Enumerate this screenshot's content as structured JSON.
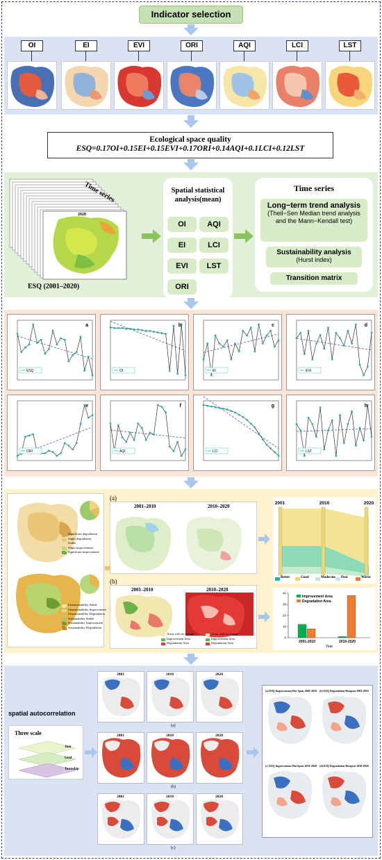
{
  "header": {
    "title": "Indicator selection"
  },
  "indicators": [
    "OI",
    "EI",
    "EVI",
    "ORI",
    "AQI",
    "LCI",
    "LST"
  ],
  "formula": {
    "title": "Ecological space quality",
    "equation": "ESQ=0.17OI+0.15EI+0.15EVI+0.17ORI+0.14AQI+0.1LCI+0.12LST"
  },
  "time_series_panel": {
    "stack_label": "Time series",
    "map_year": "2020",
    "caption": "ESQ (2001–2020)"
  },
  "spatial_stats": {
    "title": "Spatial statistical analysis(mean)",
    "items": [
      "OI",
      "AQI",
      "EI",
      "LCI",
      "EVI",
      "LST",
      "ORI"
    ]
  },
  "time_series_box": {
    "title": "Time series",
    "trend_title": "Long−term trend analysis",
    "trend_sub": "(Theil−Sen Median trend analysis and the Mann−Kendall test)",
    "sustain_title": "Sustainability analysis",
    "sustain_sub": "(Hurst index)",
    "transition": "Transition matrix"
  },
  "chart_data": [
    {
      "type": "line",
      "panel": "a",
      "legend": "ESQ",
      "x": [
        2001,
        2002,
        2003,
        2004,
        2005,
        2006,
        2007,
        2008,
        2009,
        2010,
        2011,
        2012,
        2013,
        2014,
        2015,
        2016,
        2017,
        2018,
        2019,
        2020
      ],
      "values": [
        60,
        48,
        51,
        53,
        66,
        54,
        56,
        47,
        50,
        62,
        53,
        57,
        56,
        42,
        46,
        48,
        58,
        36,
        45,
        33
      ]
    },
    {
      "type": "line",
      "panel": "b",
      "legend": "OI",
      "x": [
        2001,
        2002,
        2003,
        2004,
        2005,
        2006,
        2007,
        2008,
        2009,
        2010,
        2011,
        2012,
        2013,
        2014,
        2015,
        2016,
        2017,
        2018,
        2019,
        2020
      ],
      "values": [
        80,
        79,
        79,
        79,
        78,
        78,
        77,
        77,
        76,
        75,
        75,
        74,
        73,
        72,
        71,
        20,
        82,
        16,
        84,
        14
      ]
    },
    {
      "type": "line",
      "panel": "c",
      "legend": "EI",
      "x": [
        2001,
        2002,
        2003,
        2004,
        2005,
        2006,
        2007,
        2008,
        2009,
        2010,
        2011,
        2012,
        2013,
        2014,
        2015,
        2016,
        2017,
        2018,
        2019,
        2020
      ],
      "values": [
        40,
        50,
        30,
        55,
        50,
        48,
        52,
        40,
        50,
        45,
        58,
        55,
        60,
        45,
        62,
        50,
        55,
        58,
        48,
        52
      ]
    },
    {
      "type": "line",
      "panel": "d",
      "legend": "EVI",
      "x": [
        2001,
        2002,
        2003,
        2004,
        2005,
        2006,
        2007,
        2008,
        2009,
        2010,
        2011,
        2012,
        2013,
        2014,
        2015,
        2016,
        2017,
        2018,
        2019,
        2020
      ],
      "values": [
        55,
        60,
        40,
        62,
        35,
        50,
        58,
        45,
        65,
        35,
        60,
        55,
        48,
        62,
        50,
        68,
        30,
        20,
        28,
        60
      ]
    },
    {
      "type": "line",
      "panel": "e",
      "legend": "ORI",
      "x": [
        2001,
        2002,
        2003,
        2004,
        2005,
        2006,
        2007,
        2008,
        2009,
        2010,
        2011,
        2012,
        2013,
        2014,
        2015,
        2016,
        2017,
        2018,
        2019,
        2020
      ],
      "values": [
        30,
        32,
        45,
        46,
        47,
        33,
        32,
        32,
        34,
        33,
        30,
        32,
        40,
        38,
        35,
        40,
        55,
        70,
        60,
        62
      ]
    },
    {
      "type": "line",
      "panel": "f",
      "legend": "AQI",
      "x": [
        2001,
        2002,
        2003,
        2004,
        2005,
        2006,
        2007,
        2008,
        2009,
        2010,
        2011,
        2012,
        2013,
        2014,
        2015,
        2016,
        2017,
        2018,
        2019,
        2020
      ],
      "values": [
        70,
        40,
        68,
        55,
        50,
        60,
        52,
        70,
        65,
        52,
        60,
        58,
        90,
        88,
        82,
        45,
        40,
        50,
        35,
        42
      ]
    },
    {
      "type": "line",
      "panel": "g",
      "legend": "LCI",
      "x": [
        2001,
        2002,
        2003,
        2004,
        2005,
        2006,
        2007,
        2008,
        2009,
        2010,
        2011,
        2012,
        2013,
        2014,
        2015,
        2016,
        2017,
        2018,
        2019,
        2020
      ],
      "values": [
        88,
        87,
        86,
        85,
        84,
        83,
        82,
        80,
        78,
        75,
        72,
        68,
        63,
        58,
        50,
        42,
        35,
        30,
        25,
        20
      ]
    },
    {
      "type": "line",
      "panel": "h",
      "legend": "LST",
      "x": [
        2001,
        2002,
        2003,
        2004,
        2005,
        2006,
        2007,
        2008,
        2009,
        2010,
        2011,
        2012,
        2013,
        2014,
        2015,
        2016,
        2017,
        2018,
        2019,
        2020
      ],
      "values": [
        55,
        50,
        30,
        60,
        55,
        45,
        68,
        35,
        50,
        58,
        30,
        62,
        40,
        55,
        65,
        38,
        52,
        42,
        70,
        45
      ]
    },
    {
      "type": "bar",
      "categories": [
        "2001-2010",
        "2010-2020"
      ],
      "series": [
        {
          "name": "Improvement Area",
          "values": [
            12,
            1
          ]
        },
        {
          "name": "Degradation Area",
          "values": [
            8,
            38
          ]
        }
      ],
      "ylim": [
        0,
        40
      ]
    }
  ],
  "trend_section": {
    "panel_a": "(a)",
    "panel_b": "(b)",
    "period1": "2001–2010",
    "period2": "2010–2020",
    "sankey_years": [
      "2001",
      "2010",
      "2020"
    ],
    "sankey_legend": [
      "Better",
      "Good",
      "Moderate",
      "Poor",
      "Worse"
    ],
    "legend_b": [
      "Areas with no change",
      "Improvement Area",
      "Degradation Area"
    ],
    "trend_legend": [
      "Significant degradation",
      "Slight degradation",
      "Stable",
      "Slight improvement",
      "Significant improvement"
    ],
    "hurst_legend": [
      "Unsustainability Stable",
      "Unsustainability Improvement",
      "Unsustainability Degradation",
      "Sustainability Stable",
      "Sustainability Improvement",
      "Sustainability Degradation"
    ],
    "scale": [
      "0",
      "150",
      "300"
    ],
    "bar_x_label": "Year"
  },
  "autocorr": {
    "title": "spatial autocorrelation",
    "scale_title": "Three scale",
    "scales": [
      "1km",
      "Grid",
      "Township"
    ],
    "years": [
      "2001",
      "2010",
      "2020"
    ],
    "rows": [
      "(a)",
      "(b)",
      "(c)"
    ],
    "hotspots": [
      "ESQ Improvement Hot Spots 2001-2010",
      "ESQ Degradation Hotspots 2001-2010",
      "ESQ Improvement Hot Spots 2010-2020",
      "ESQ Degradation Hotspots 2010-2020"
    ],
    "hot_labels": [
      "(a)",
      "(b)",
      "(c)",
      "(d)"
    ]
  },
  "colors": {
    "green_band": "#e2efd9",
    "blue_band": "#dae3f3",
    "orange_band": "#fbe5d6",
    "yellow_band": "#fff2cc",
    "arrow": "#a9c7ee",
    "improve": "#00b050",
    "degrade": "#ed7d31"
  }
}
